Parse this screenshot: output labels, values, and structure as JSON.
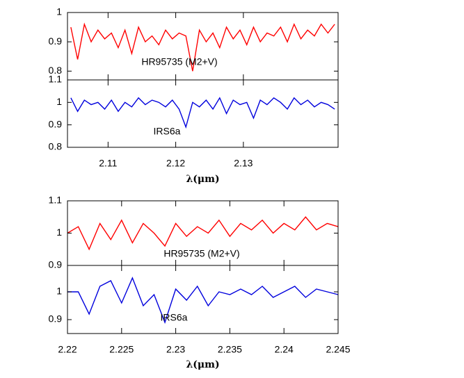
{
  "chart_data": [
    {
      "type": "line",
      "xlim": [
        2.104,
        2.144
      ],
      "ylim": [
        0.77,
        1.0
      ],
      "xticks": [
        2.11,
        2.12,
        2.13
      ],
      "yticks": [
        0.8,
        0.9,
        1
      ],
      "x": [
        2.1045,
        2.1055,
        2.1065,
        2.1075,
        2.1085,
        2.1095,
        2.1105,
        2.1115,
        2.1125,
        2.1135,
        2.1145,
        2.1155,
        2.1165,
        2.1175,
        2.1185,
        2.1195,
        2.1205,
        2.1215,
        2.1225,
        2.1235,
        2.1245,
        2.1255,
        2.1265,
        2.1275,
        2.1285,
        2.1295,
        2.1305,
        2.1315,
        2.1325,
        2.1335,
        2.1345,
        2.1355,
        2.1365,
        2.1375,
        2.1385,
        2.1395,
        2.1405,
        2.1415,
        2.1425,
        2.1435
      ],
      "series": [
        {
          "name": "HR95735 (M2+V)",
          "color": "#ff0000",
          "values": [
            0.95,
            0.84,
            0.96,
            0.9,
            0.94,
            0.91,
            0.93,
            0.88,
            0.94,
            0.86,
            0.95,
            0.9,
            0.92,
            0.89,
            0.94,
            0.91,
            0.93,
            0.92,
            0.8,
            0.94,
            0.9,
            0.93,
            0.88,
            0.95,
            0.91,
            0.94,
            0.89,
            0.95,
            0.9,
            0.93,
            0.92,
            0.95,
            0.9,
            0.96,
            0.91,
            0.94,
            0.92,
            0.96,
            0.93,
            0.96
          ]
        }
      ]
    },
    {
      "type": "line",
      "xlim": [
        2.104,
        2.144
      ],
      "ylim": [
        0.8,
        1.1
      ],
      "xticks": [
        2.11,
        2.12,
        2.13
      ],
      "yticks": [
        0.8,
        0.9,
        1,
        1.1
      ],
      "xlabel": "λ(μm)",
      "x": [
        2.1045,
        2.1055,
        2.1065,
        2.1075,
        2.1085,
        2.1095,
        2.1105,
        2.1115,
        2.1125,
        2.1135,
        2.1145,
        2.1155,
        2.1165,
        2.1175,
        2.1185,
        2.1195,
        2.1205,
        2.1215,
        2.1225,
        2.1235,
        2.1245,
        2.1255,
        2.1265,
        2.1275,
        2.1285,
        2.1295,
        2.1305,
        2.1315,
        2.1325,
        2.1335,
        2.1345,
        2.1355,
        2.1365,
        2.1375,
        2.1385,
        2.1395,
        2.1405,
        2.1415,
        2.1425,
        2.1435
      ],
      "series": [
        {
          "name": "IRS6a",
          "color": "#0000dd",
          "values": [
            1.02,
            0.96,
            1.01,
            0.99,
            1.0,
            0.97,
            1.01,
            0.96,
            1.0,
            0.98,
            1.02,
            0.99,
            1.01,
            1.0,
            0.98,
            1.01,
            0.97,
            0.89,
            1.0,
            0.98,
            1.01,
            0.97,
            1.02,
            0.95,
            1.01,
            0.99,
            1.0,
            0.93,
            1.01,
            0.99,
            1.02,
            1.0,
            0.97,
            1.02,
            0.99,
            1.01,
            0.98,
            1.0,
            0.99,
            0.97
          ]
        }
      ]
    },
    {
      "type": "line",
      "xlim": [
        2.22,
        2.245
      ],
      "ylim": [
        0.9,
        1.1
      ],
      "xticks": [
        2.22,
        2.225,
        2.23,
        2.235,
        2.24,
        2.245
      ],
      "yticks": [
        0.9,
        1,
        1.1
      ],
      "x": [
        2.22,
        2.221,
        2.222,
        2.223,
        2.224,
        2.225,
        2.226,
        2.227,
        2.228,
        2.229,
        2.23,
        2.231,
        2.232,
        2.233,
        2.234,
        2.235,
        2.236,
        2.237,
        2.238,
        2.239,
        2.24,
        2.241,
        2.242,
        2.243,
        2.244,
        2.245
      ],
      "series": [
        {
          "name": "HR95735 (M2+V)",
          "color": "#ff0000",
          "values": [
            1.0,
            1.02,
            0.95,
            1.03,
            0.98,
            1.04,
            0.97,
            1.03,
            1.0,
            0.96,
            1.03,
            0.99,
            1.02,
            1.0,
            1.04,
            0.99,
            1.03,
            1.01,
            1.04,
            1.0,
            1.03,
            1.01,
            1.05,
            1.01,
            1.03,
            1.02
          ]
        }
      ]
    },
    {
      "type": "line",
      "xlim": [
        2.22,
        2.245
      ],
      "ylim": [
        0.85,
        1.095
      ],
      "xticks": [
        2.22,
        2.225,
        2.23,
        2.235,
        2.24,
        2.245
      ],
      "yticks": [
        0.9,
        1
      ],
      "xlabel": "λ(μm)",
      "x": [
        2.22,
        2.221,
        2.222,
        2.223,
        2.224,
        2.225,
        2.226,
        2.227,
        2.228,
        2.229,
        2.23,
        2.231,
        2.232,
        2.233,
        2.234,
        2.235,
        2.236,
        2.237,
        2.238,
        2.239,
        2.24,
        2.241,
        2.242,
        2.243,
        2.244,
        2.245
      ],
      "series": [
        {
          "name": "IRS6a",
          "color": "#0000dd",
          "values": [
            1.0,
            1.0,
            0.92,
            1.02,
            1.04,
            0.96,
            1.05,
            0.95,
            0.99,
            0.89,
            1.01,
            0.97,
            1.02,
            0.95,
            1.0,
            0.99,
            1.01,
            0.99,
            1.02,
            0.98,
            1.0,
            1.02,
            0.98,
            1.01,
            1.0,
            0.99
          ]
        }
      ]
    }
  ]
}
